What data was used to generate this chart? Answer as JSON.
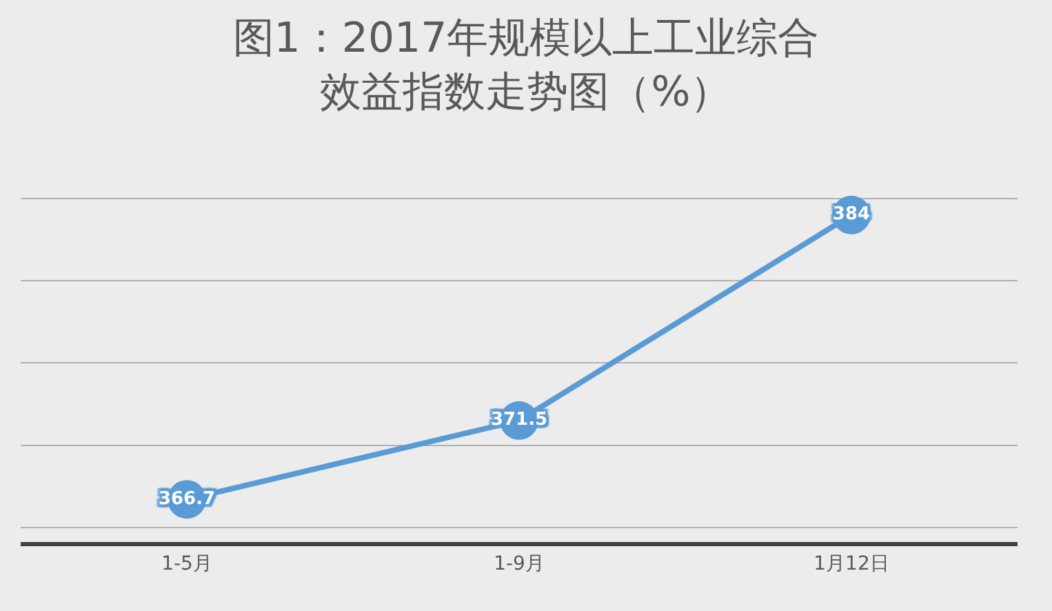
{
  "chart_data": {
    "type": "line",
    "title": "图1：2017年规模以上工业综合效益指数走势图（%）",
    "categories": [
      "1-5月",
      "1-9月",
      "1月12日"
    ],
    "series": [
      {
        "color": "#5b9bd5",
        "values": [
          366.7,
          371.5,
          384
        ]
      }
    ],
    "data_labels": true,
    "marker": "circle",
    "line_style": "solid",
    "grid": "y",
    "tick_labels": "x",
    "legend": false
  }
}
